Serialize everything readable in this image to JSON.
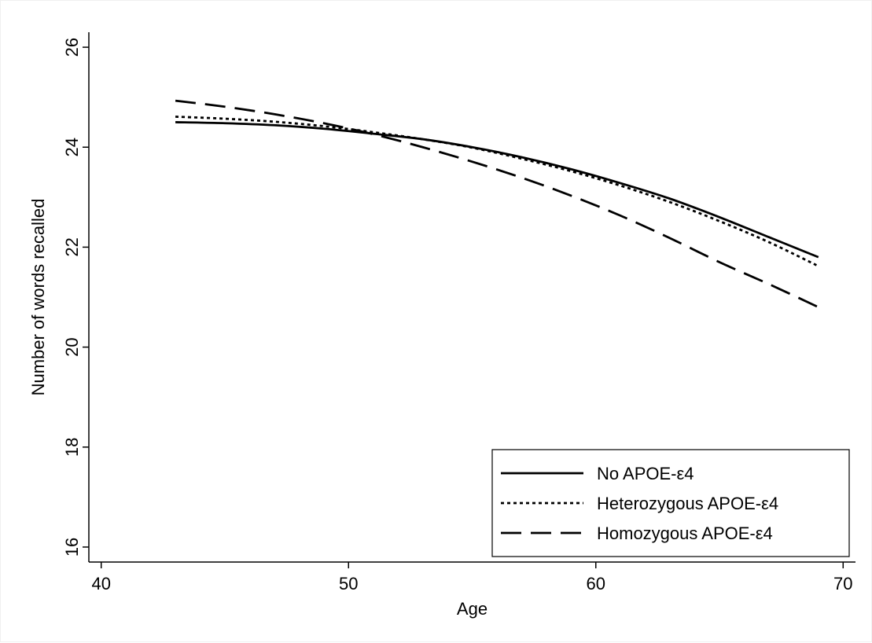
{
  "chart_data": {
    "type": "line",
    "title": "",
    "xlabel": "Age",
    "ylabel": "Number of words recalled",
    "xlim": [
      39.5,
      70.5
    ],
    "ylim": [
      15.7,
      26.3
    ],
    "x_ticks": [
      40,
      50,
      60,
      70
    ],
    "y_ticks": [
      16,
      18,
      20,
      22,
      24,
      26
    ],
    "x_tick_labels": [
      "40",
      "50",
      "60",
      "70"
    ],
    "y_tick_labels": [
      "16",
      "18",
      "20",
      "22",
      "24",
      "26"
    ],
    "grid": false,
    "legend_position": "bottom-right",
    "x": [
      43,
      45,
      47,
      49,
      51,
      53,
      55,
      57,
      59,
      61,
      63,
      65,
      67,
      69
    ],
    "series": [
      {
        "name": "No APOE-ε4",
        "line_style": "solid",
        "color": "#000000",
        "values": [
          24.5,
          24.48,
          24.44,
          24.37,
          24.27,
          24.16,
          24.0,
          23.8,
          23.56,
          23.28,
          22.97,
          22.6,
          22.2,
          21.8
        ]
      },
      {
        "name": "Heterozygous APOE-ε4",
        "line_style": "dotted",
        "color": "#000000",
        "values": [
          24.61,
          24.57,
          24.51,
          24.42,
          24.3,
          24.16,
          23.99,
          23.77,
          23.52,
          23.23,
          22.9,
          22.52,
          22.1,
          21.62
        ]
      },
      {
        "name": "Homozygous APOE-ε4",
        "line_style": "dashed",
        "color": "#000000",
        "values": [
          24.93,
          24.81,
          24.66,
          24.48,
          24.26,
          24.0,
          23.71,
          23.39,
          23.03,
          22.63,
          22.18,
          21.7,
          21.26,
          20.8
        ]
      }
    ]
  }
}
